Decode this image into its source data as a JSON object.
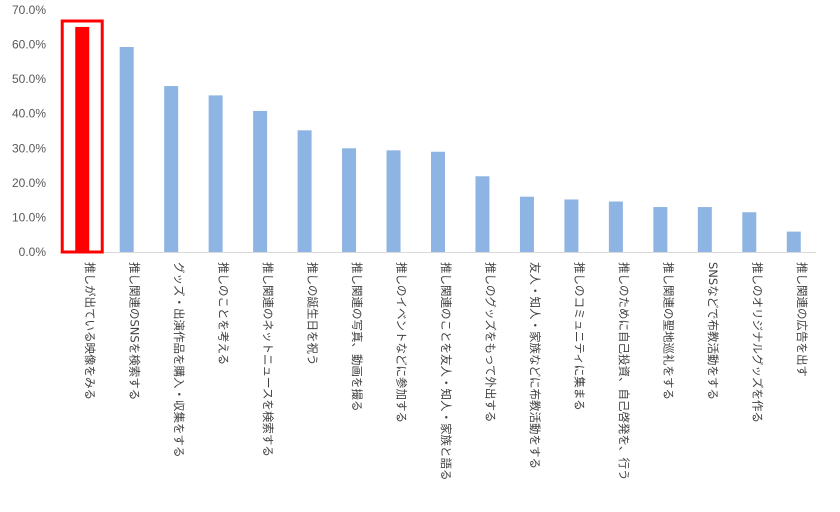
{
  "chart_data": {
    "type": "bar",
    "title": "",
    "xlabel": "",
    "ylabel": "",
    "ylim": [
      0,
      0.7
    ],
    "yticks": [
      0,
      0.1,
      0.2,
      0.3,
      0.4,
      0.5,
      0.6,
      0.7
    ],
    "ytick_labels": [
      "0.0%",
      "10.0%",
      "20.0%",
      "30.0%",
      "40.0%",
      "50.0%",
      "60.0%",
      "70.0%"
    ],
    "grid": false,
    "legend": "none",
    "categories": [
      "推しが出ている映像をみる",
      "推し関連のSNSを検索する",
      "グッズ・出演作品を購入・収集をする",
      "推しのことを考える",
      "推し関連のネットニュースを検索する",
      "推しの誕生日を祝う",
      "推し関連の写真、動画を撮る",
      "推しのイベントなどに参加する",
      "推し関連のことを友人・知人・家族と語る",
      "推しのグッズをもって外出する",
      "友人・知人・家族などに布教活動をする",
      "推しのコミュニティに集まる",
      "推しのために自己投資、自己啓発を、行う",
      "推し関連の聖地巡礼をする",
      "SNSなどで布教活動をする",
      "推しのオリジナルグッズを作る",
      "推し関連の広告を出す"
    ],
    "values": [
      0.651,
      0.593,
      0.48,
      0.453,
      0.408,
      0.352,
      0.3,
      0.294,
      0.29,
      0.219,
      0.16,
      0.152,
      0.146,
      0.13,
      0.13,
      0.115,
      0.059
    ],
    "highlight_index": 0,
    "colors": {
      "bar": "#8eb4e3",
      "highlight_bar": "#ff0000",
      "highlight_box": "#ff0000",
      "axis": "#d9d9d9"
    }
  }
}
